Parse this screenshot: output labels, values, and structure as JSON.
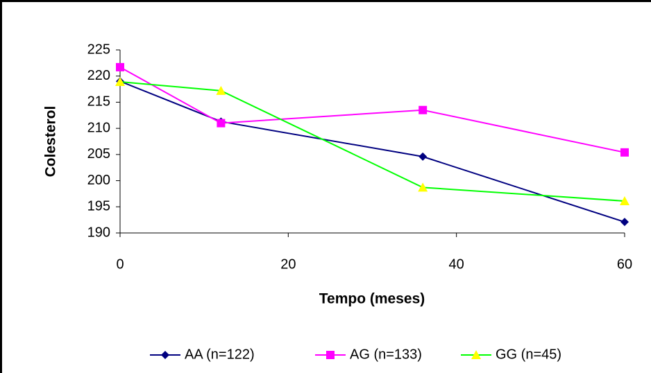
{
  "chart_data": {
    "type": "line",
    "x_label": "Tempo (meses)",
    "y_label": "Colesterol",
    "x": [
      0,
      12,
      36,
      60
    ],
    "series": [
      {
        "name": "AA (n=122)",
        "color": "#000080",
        "marker": "diamond",
        "marker_color": "#000080",
        "values": [
          219,
          211.3,
          204.6,
          192.1
        ]
      },
      {
        "name": "AG (n=133)",
        "color": "#ff00ff",
        "marker": "square",
        "marker_color": "#ff00ff",
        "values": [
          221.7,
          211,
          213.5,
          205.4
        ]
      },
      {
        "name": "GG (n=45)",
        "color": "#00ff00",
        "marker": "triangle",
        "marker_color": "#ffff00",
        "values": [
          218.9,
          217.2,
          198.7,
          196.1
        ]
      }
    ],
    "xlim": [
      0,
      60
    ],
    "xticks": [
      0,
      20,
      40,
      60
    ],
    "ylim": [
      190,
      225
    ],
    "yticks": [
      190,
      195,
      200,
      205,
      210,
      215,
      220,
      225
    ],
    "grid": false,
    "legend": "bottom"
  }
}
